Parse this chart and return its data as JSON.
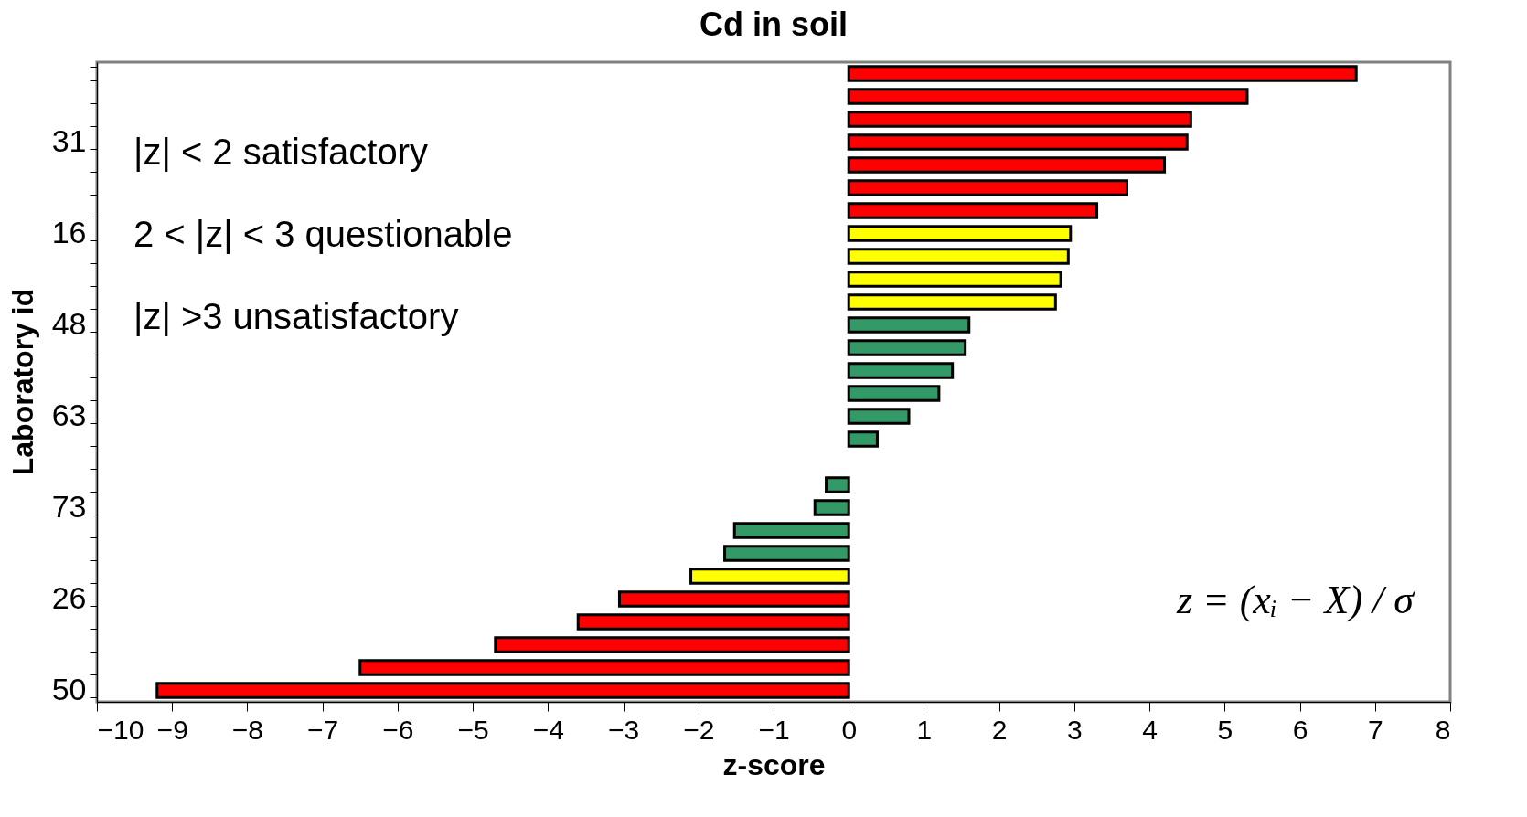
{
  "chart_data": {
    "type": "bar",
    "orientation": "horizontal",
    "title": "Cd in soil",
    "xlabel": "z-score",
    "ylabel": "Laboratory id",
    "categories": [
      null,
      null,
      null,
      "31",
      null,
      null,
      null,
      "16",
      null,
      null,
      null,
      "48",
      null,
      null,
      null,
      "63",
      null,
      null,
      null,
      "73",
      null,
      null,
      null,
      "26",
      null,
      null,
      null,
      "50"
    ],
    "values": [
      6.75,
      5.3,
      4.55,
      4.5,
      4.2,
      3.7,
      3.3,
      2.95,
      2.92,
      2.82,
      2.75,
      1.6,
      1.55,
      1.38,
      1.2,
      0.8,
      0.38,
      null,
      -0.3,
      -0.45,
      -1.52,
      -1.65,
      -2.1,
      -3.05,
      -3.6,
      -4.7,
      -6.5,
      -9.2
    ],
    "colors": [
      "#ff0000",
      "#ff0000",
      "#ff0000",
      "#ff0000",
      "#ff0000",
      "#ff0000",
      "#ff0000",
      "#ffff00",
      "#ffff00",
      "#ffff00",
      "#ffff00",
      "#339966",
      "#339966",
      "#339966",
      "#339966",
      "#339966",
      "#339966",
      "#339966",
      "#339966",
      "#339966",
      "#339966",
      "#339966",
      "#ffff00",
      "#ff0000",
      "#ff0000",
      "#ff0000",
      "#ff0000",
      "#ff0000"
    ],
    "xlim": [
      -10,
      8
    ],
    "xticks": [
      -10,
      -9,
      -8,
      -7,
      -6,
      -5,
      -4,
      -3,
      -2,
      -1,
      0,
      1,
      2,
      3,
      4,
      5,
      6,
      7,
      8
    ],
    "annotations": [
      "|z| < 2      satisfactory",
      "2 < |z| < 3 questionable",
      "|z| >3         unsatisfactory",
      "z = (xᵢ − X) / σ"
    ]
  }
}
